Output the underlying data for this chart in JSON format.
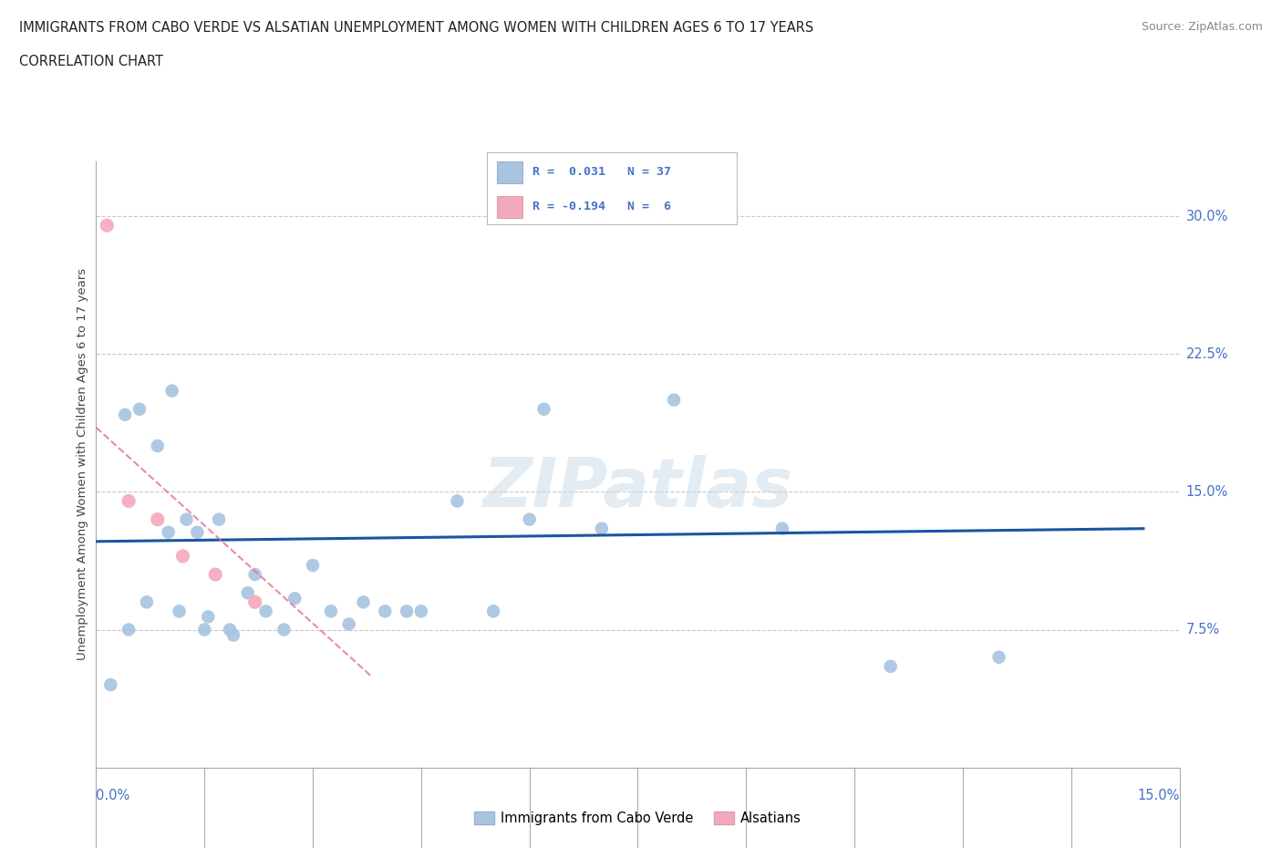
{
  "title1": "IMMIGRANTS FROM CABO VERDE VS ALSATIAN UNEMPLOYMENT AMONG WOMEN WITH CHILDREN AGES 6 TO 17 YEARS",
  "title2": "CORRELATION CHART",
  "source": "Source: ZipAtlas.com",
  "ylabel_label": "Unemployment Among Women with Children Ages 6 to 17 years",
  "y_tick_labels": [
    "7.5%",
    "15.0%",
    "22.5%",
    "30.0%"
  ],
  "y_tick_values": [
    7.5,
    15.0,
    22.5,
    30.0
  ],
  "x_min": 0.0,
  "x_max": 15.0,
  "y_min": 0.0,
  "y_max": 33.0,
  "color_blue": "#a8c4e0",
  "color_pink": "#f4a8bc",
  "line_blue": "#1a56a0",
  "line_pink": "#e07090",
  "watermark": "ZIPatlas",
  "cabo_verde_x": [
    0.2,
    0.4,
    0.6,
    0.85,
    1.05,
    1.25,
    1.4,
    1.55,
    1.7,
    1.9,
    2.1,
    2.35,
    2.6,
    2.75,
    3.0,
    3.25,
    3.5,
    3.7,
    4.0,
    4.3,
    4.5,
    5.0,
    5.5,
    6.0,
    6.2,
    7.0,
    8.0,
    9.5,
    11.0,
    12.5,
    0.45,
    0.7,
    1.0,
    1.15,
    1.5,
    1.85,
    2.2
  ],
  "cabo_verde_y": [
    4.5,
    19.2,
    19.5,
    17.5,
    20.5,
    13.5,
    12.8,
    8.2,
    13.5,
    7.2,
    9.5,
    8.5,
    7.5,
    9.2,
    11.0,
    8.5,
    7.8,
    9.0,
    8.5,
    8.5,
    8.5,
    14.5,
    8.5,
    13.5,
    19.5,
    13.0,
    20.0,
    13.0,
    5.5,
    6.0,
    7.5,
    9.0,
    12.8,
    8.5,
    7.5,
    7.5,
    10.5
  ],
  "alsatians_x": [
    0.15,
    0.45,
    0.85,
    1.2,
    1.65,
    2.2
  ],
  "alsatians_y": [
    29.5,
    14.5,
    13.5,
    11.5,
    10.5,
    9.0
  ],
  "blue_trend_x0": 0.0,
  "blue_trend_x1": 14.5,
  "blue_trend_y0": 12.3,
  "blue_trend_y1": 13.0,
  "pink_trend_x0": 0.0,
  "pink_trend_x1": 3.8,
  "pink_trend_y0": 18.5,
  "pink_trend_y1": 5.0,
  "legend_text1": "R =  0.031   N = 37",
  "legend_text2": "R = -0.194   N =  6"
}
